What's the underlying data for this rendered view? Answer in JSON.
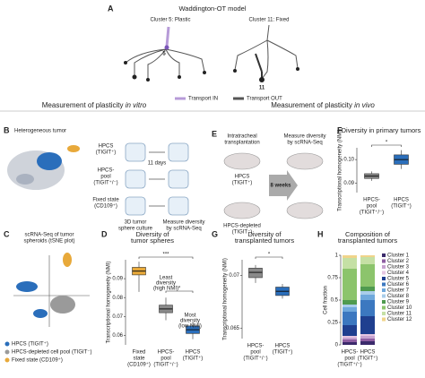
{
  "panel_a": {
    "letter": "A",
    "title": "Waddington-OT model",
    "left_label": "Cluster 5: Plastic",
    "right_label": "Cluster 11: Fixed",
    "left_node": "5",
    "right_node": "11",
    "legend": [
      {
        "name": "Transport IN",
        "color": "#b79bd8"
      },
      {
        "name": "Transport OUT",
        "color": "#555555"
      }
    ]
  },
  "section_vitro": {
    "text": "Measurement of plasticity ",
    "italic": "in vitro"
  },
  "section_vivo": {
    "text": "Measurement of plasticity ",
    "italic": "in vivo"
  },
  "panel_b": {
    "letter": "B",
    "title": "Heterogeneous tumor",
    "rows": [
      [
        "HPCS",
        "(TIGIT⁺)"
      ],
      [
        "HPCS-",
        "pool",
        "(TIGIT⁺/⁻)"
      ],
      [
        "Fixed state",
        "(CD109⁺)"
      ]
    ],
    "duration": "11 days",
    "culture": [
      "3D tumor",
      "sphere culture"
    ],
    "measure": [
      "Measure diversity",
      "by scRNA-Seq"
    ]
  },
  "panel_c": {
    "letter": "C",
    "title": [
      "scRNA-Seq of tumor",
      "spheroids (tSNE plot)"
    ],
    "legend": [
      {
        "name": "HPCS (TIGIT⁺)",
        "color": "#2a6ebb"
      },
      {
        "name": "HPCS-depleted cell pool (TIGIT⁻)",
        "color": "#9a9a9a"
      },
      {
        "name": "Fixed state (CD109⁺)",
        "color": "#e8a93a"
      }
    ]
  },
  "panel_d": {
    "letter": "D",
    "title": [
      "Diversity of",
      "tumor spheres"
    ],
    "ylabel": "Transcriptional homogeneity (NMI)",
    "ylim": [
      0.055,
      0.1
    ],
    "yticks": [
      0.06,
      0.07,
      0.08,
      0.09
    ],
    "boxes": [
      {
        "label": [
          "Fixed",
          "state",
          "(CD109⁺)"
        ],
        "color": "#e8a93a",
        "min": 0.083,
        "q1": 0.092,
        "median": 0.094,
        "q3": 0.096,
        "max": 0.099
      },
      {
        "label": [
          "HPCS-",
          "pool",
          "(TIGIT⁺/⁻)"
        ],
        "color": "#8a8a8a",
        "min": 0.068,
        "q1": 0.072,
        "median": 0.074,
        "q3": 0.076,
        "max": 0.08
      },
      {
        "label": [
          "HPCS",
          "(TIGIT⁺)"
        ],
        "color": "#2a6ebb",
        "min": 0.058,
        "q1": 0.061,
        "median": 0.063,
        "q3": 0.065,
        "max": 0.067
      }
    ],
    "sig": [
      "***",
      "*"
    ],
    "note_high": [
      "Least",
      "diversity",
      "(high NMI)"
    ],
    "note_low": [
      "Most",
      "diversity",
      "(low NMI)"
    ]
  },
  "panel_e": {
    "letter": "E",
    "transplant": [
      "Intratracheal",
      "transplantation"
    ],
    "top_label": [
      "HPCS",
      "(TIGIT⁺)"
    ],
    "duration": "8 weeks",
    "measure": [
      "Measure diversity",
      "by scRNA-Seq"
    ],
    "bottom_label": [
      "HPCS-depleted",
      "(TIGIT⁻)"
    ]
  },
  "panel_f": {
    "letter": "F",
    "title": "Diversity in primary tumors",
    "ylabel": "Transcriptional homogeneity (NMI)",
    "ylim": [
      0.086,
      0.105
    ],
    "yticks": [
      0.09,
      {
        "value": 0.1,
        "label": "0.10"
      }
    ],
    "boxes": [
      {
        "label": [
          "HPCS-",
          "pool",
          "(TIGIT⁺/⁻)"
        ],
        "color": "#8a8a8a",
        "min": 0.091,
        "q1": 0.092,
        "median": 0.093,
        "q3": 0.094,
        "max": 0.095
      },
      {
        "label": [
          "HPCS",
          "(TIGIT⁺)"
        ],
        "color": "#2a6ebb",
        "min": 0.096,
        "q1": 0.098,
        "median": 0.1,
        "q3": 0.102,
        "max": 0.104
      }
    ],
    "sig": [
      "*"
    ]
  },
  "panel_g": {
    "letter": "G",
    "title": [
      "Diversity of",
      "transplanted tumors"
    ],
    "ylabel": "Transcriptional homogeneity (NMI)",
    "ylim": [
      0.064,
      0.0715
    ],
    "yticks": [
      0.065,
      0.07
    ],
    "boxes": [
      {
        "label": [
          "HPCS-",
          "pool",
          "(TIGIT⁺/⁻)"
        ],
        "color": "#8a8a8a",
        "min": 0.0693,
        "q1": 0.0698,
        "median": 0.0703,
        "q3": 0.0707,
        "max": 0.071
      },
      {
        "label": [
          "HPCS",
          "(TIGIT⁺)"
        ],
        "color": "#2a6ebb",
        "min": 0.0678,
        "q1": 0.0681,
        "median": 0.0685,
        "q3": 0.0689,
        "max": 0.0692
      }
    ],
    "sig": [
      "*"
    ]
  },
  "panel_h": {
    "letter": "H",
    "title": [
      "Composition of",
      "transplanted tumors"
    ],
    "ylabel": "Cell fraction",
    "ylim": [
      0,
      1
    ],
    "yticks": [
      0,
      0.25,
      0.5,
      0.75,
      1
    ],
    "categories": [
      [
        "HPCS-",
        "pool",
        "(TIGIT⁺/⁻)"
      ],
      [
        "HPCS",
        "(TIGIT⁺)"
      ]
    ],
    "series": [
      {
        "name": "Cluster 1",
        "color": "#3b2a6b",
        "values": [
          0.03,
          0.04
        ]
      },
      {
        "name": "Cluster 2",
        "color": "#8e5ea2",
        "values": [
          0.03,
          0.03
        ]
      },
      {
        "name": "Cluster 3",
        "color": "#c7a3d0",
        "values": [
          0.02,
          0.03
        ]
      },
      {
        "name": "Cluster 4",
        "color": "#e6c6e2",
        "values": [
          0.02,
          0.02
        ]
      },
      {
        "name": "Cluster 5",
        "color": "#1f3f8f",
        "values": [
          0.12,
          0.2
        ]
      },
      {
        "name": "Cluster 6",
        "color": "#3c78c0",
        "values": [
          0.15,
          0.18
        ]
      },
      {
        "name": "Cluster 7",
        "color": "#6fa8dc",
        "values": [
          0.05,
          0.06
        ]
      },
      {
        "name": "Cluster 8",
        "color": "#a9cdea",
        "values": [
          0.03,
          0.04
        ]
      },
      {
        "name": "Cluster 9",
        "color": "#4f9a4f",
        "values": [
          0.05,
          0.05
        ]
      },
      {
        "name": "Cluster 10",
        "color": "#8cc46c",
        "values": [
          0.35,
          0.25
        ]
      },
      {
        "name": "Cluster 11",
        "color": "#c5e0a5",
        "values": [
          0.12,
          0.08
        ]
      },
      {
        "name": "Cluster 12",
        "color": "#f0d48a",
        "values": [
          0.03,
          0.02
        ]
      }
    ]
  }
}
